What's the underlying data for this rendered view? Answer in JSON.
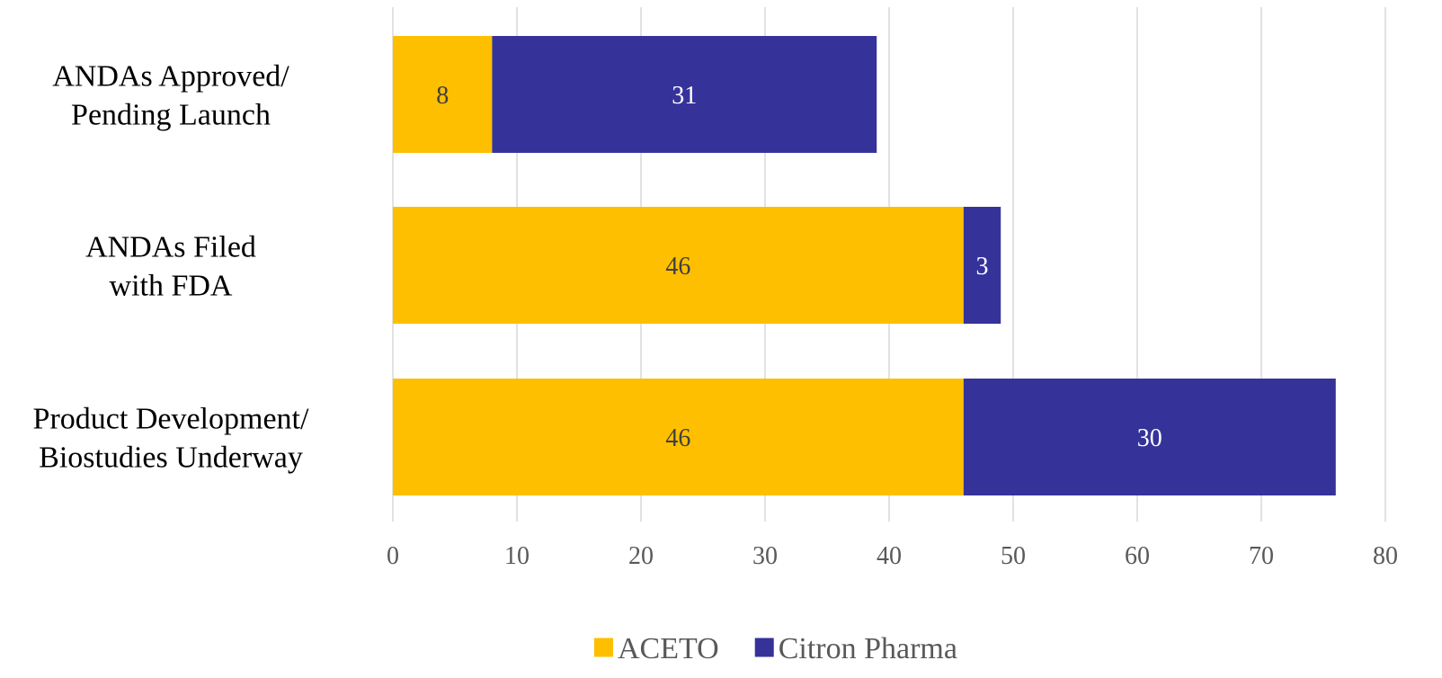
{
  "chart_data": {
    "type": "bar",
    "orientation": "horizontal",
    "stacked": true,
    "categories": [
      [
        "ANDAs Approved/",
        "Pending Launch"
      ],
      [
        "ANDAs Filed",
        "with FDA"
      ],
      [
        "Product Development/",
        "Biostudies Underway"
      ]
    ],
    "series": [
      {
        "name": "ACETO",
        "color": "#FDBF00",
        "label_color": "#404040",
        "values": [
          8,
          46,
          46
        ]
      },
      {
        "name": "Citron Pharma",
        "color": "#35339A",
        "label_color": "#FFFFFF",
        "values": [
          31,
          3,
          30
        ]
      }
    ],
    "xlim": [
      0,
      80
    ],
    "xticks": [
      "0",
      "10",
      "20",
      "30",
      "40",
      "50",
      "60",
      "70",
      "80"
    ],
    "grid": true,
    "legend_position": "bottom-center",
    "gridline_color": "#D9D9D9"
  }
}
